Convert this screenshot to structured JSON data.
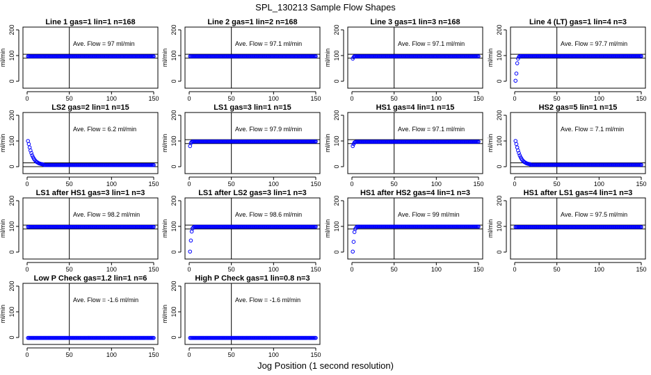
{
  "figure": {
    "title": "SPL_130213  Sample Flow Shapes",
    "xlabel": "Jog Position (1 second resolution)"
  },
  "colors": {
    "points": "#0000ff",
    "lines": "#000000",
    "background": "#ffffff"
  },
  "chart_data": [
    {
      "type": "scatter",
      "title": "Line 1 gas=1 lin=1 n=168",
      "annotation": "Ave. Flow = 97  ml/min",
      "ylabel": "ml/min",
      "xlim": [
        0,
        150
      ],
      "ylim": [
        0,
        200
      ],
      "xticks": [
        0,
        50,
        100,
        150
      ],
      "yticks": [
        0,
        100,
        200
      ],
      "ref_lines": {
        "h": [
          90,
          105
        ],
        "v": [
          50
        ]
      },
      "x_range": [
        1,
        150
      ],
      "settle": {
        "start": [],
        "value": 97
      }
    },
    {
      "type": "scatter",
      "title": "Line 2 gas=1 lin=2 n=168",
      "annotation": "Ave. Flow = 97.1  ml/min",
      "ylabel": "ml/min",
      "xlim": [
        0,
        150
      ],
      "ylim": [
        0,
        200
      ],
      "xticks": [
        0,
        50,
        100,
        150
      ],
      "yticks": [
        0,
        100,
        200
      ],
      "ref_lines": {
        "h": [
          90,
          105
        ],
        "v": [
          50
        ]
      },
      "x_range": [
        1,
        150
      ],
      "settle": {
        "start": [],
        "value": 97.1
      }
    },
    {
      "type": "scatter",
      "title": "Line 3 gas=1 lin=3 n=168",
      "annotation": "Ave. Flow = 97.1  ml/min",
      "ylabel": "ml/min",
      "xlim": [
        0,
        150
      ],
      "ylim": [
        0,
        200
      ],
      "xticks": [
        0,
        50,
        100,
        150
      ],
      "yticks": [
        0,
        100,
        200
      ],
      "ref_lines": {
        "h": [
          90,
          105
        ],
        "v": [
          50
        ]
      },
      "x_range": [
        1,
        150
      ],
      "settle": {
        "start": [
          88,
          94
        ],
        "value": 97.1
      }
    },
    {
      "type": "scatter",
      "title": "Line 4 (LT) gas=1 lin=4 n=3",
      "annotation": "Ave. Flow = 97.7  ml/min",
      "ylabel": "ml/min",
      "xlim": [
        0,
        150
      ],
      "ylim": [
        0,
        200
      ],
      "xticks": [
        0,
        50,
        100,
        150
      ],
      "yticks": [
        0,
        100,
        200
      ],
      "ref_lines": {
        "h": [
          90,
          105
        ],
        "v": [
          50
        ]
      },
      "x_range": [
        1,
        150
      ],
      "settle": {
        "start": [
          2,
          30,
          70,
          88,
          95
        ],
        "value": 97.7
      }
    },
    {
      "type": "scatter",
      "title": "LS2 gas=2 lin=1 n=15",
      "annotation": "Ave. Flow = 6.2  ml/min",
      "ylabel": "ml/min",
      "xlim": [
        0,
        150
      ],
      "ylim": [
        0,
        200
      ],
      "xticks": [
        0,
        50,
        100,
        150
      ],
      "yticks": [
        0,
        100,
        200
      ],
      "ref_lines": {
        "h": [
          0,
          15
        ],
        "v": [
          50
        ]
      },
      "x_range": [
        1,
        150
      ],
      "settle": {
        "start": [
          100,
          88,
          75,
          63,
          53,
          44,
          37,
          31,
          26,
          22,
          19,
          17,
          15,
          13,
          12,
          11,
          10,
          9.5,
          9
        ],
        "value": 6.2,
        "decay": true
      }
    },
    {
      "type": "scatter",
      "title": "LS1 gas=3 lin=1 n=15",
      "annotation": "Ave. Flow = 97.9  ml/min",
      "ylabel": "ml/min",
      "xlim": [
        0,
        150
      ],
      "ylim": [
        0,
        200
      ],
      "xticks": [
        0,
        50,
        100,
        150
      ],
      "yticks": [
        0,
        100,
        200
      ],
      "ref_lines": {
        "h": [
          90,
          105
        ],
        "v": [
          50
        ]
      },
      "x_range": [
        1,
        150
      ],
      "settle": {
        "start": [
          80,
          92,
          96
        ],
        "value": 97.9
      }
    },
    {
      "type": "scatter",
      "title": "HS1 gas=4 lin=1 n=15",
      "annotation": "Ave. Flow = 97.1  ml/min",
      "ylabel": "ml/min",
      "xlim": [
        0,
        150
      ],
      "ylim": [
        0,
        200
      ],
      "xticks": [
        0,
        50,
        100,
        150
      ],
      "yticks": [
        0,
        100,
        200
      ],
      "ref_lines": {
        "h": [
          90,
          105
        ],
        "v": [
          50
        ]
      },
      "x_range": [
        1,
        150
      ],
      "settle": {
        "start": [
          80,
          88,
          94,
          96
        ],
        "value": 97.1
      }
    },
    {
      "type": "scatter",
      "title": "HS2 gas=5 lin=1 n=15",
      "annotation": "Ave. Flow = 7.1  ml/min",
      "ylabel": "ml/min",
      "xlim": [
        0,
        150
      ],
      "ylim": [
        0,
        200
      ],
      "xticks": [
        0,
        50,
        100,
        150
      ],
      "yticks": [
        0,
        100,
        200
      ],
      "ref_lines": {
        "h": [
          0,
          15
        ],
        "v": [
          50
        ]
      },
      "x_range": [
        1,
        150
      ],
      "settle": {
        "start": [
          100,
          88,
          75,
          63,
          53,
          44,
          37,
          31,
          26,
          22,
          19,
          17,
          15,
          13,
          12,
          11,
          10.5,
          10
        ],
        "value": 7.1,
        "decay": true
      }
    },
    {
      "type": "scatter",
      "title": "LS1 after HS1 gas=3 lin=1 n=3",
      "annotation": "Ave. Flow = 98.2  ml/min",
      "ylabel": "ml/min",
      "xlim": [
        0,
        150
      ],
      "ylim": [
        0,
        200
      ],
      "xticks": [
        0,
        50,
        100,
        150
      ],
      "yticks": [
        0,
        100,
        200
      ],
      "ref_lines": {
        "h": [
          90,
          105
        ],
        "v": [
          50
        ]
      },
      "x_range": [
        1,
        150
      ],
      "settle": {
        "start": [],
        "value": 98.2
      }
    },
    {
      "type": "scatter",
      "title": "LS1 after LS2 gas=3 lin=1 n=3",
      "annotation": "Ave. Flow = 98.6  ml/min",
      "ylabel": "ml/min",
      "xlim": [
        0,
        150
      ],
      "ylim": [
        0,
        200
      ],
      "xticks": [
        0,
        50,
        100,
        150
      ],
      "yticks": [
        0,
        100,
        200
      ],
      "ref_lines": {
        "h": [
          90,
          105
        ],
        "v": [
          50
        ]
      },
      "x_range": [
        1,
        150
      ],
      "settle": {
        "start": [
          2,
          45,
          80,
          92,
          96
        ],
        "value": 98.6
      }
    },
    {
      "type": "scatter",
      "title": "HS1 after HS2 gas=4 lin=1 n=3",
      "annotation": "Ave. Flow = 99  ml/min",
      "ylabel": "ml/min",
      "xlim": [
        0,
        150
      ],
      "ylim": [
        0,
        200
      ],
      "xticks": [
        0,
        50,
        100,
        150
      ],
      "yticks": [
        0,
        100,
        200
      ],
      "ref_lines": {
        "h": [
          90,
          105
        ],
        "v": [
          50
        ]
      },
      "x_range": [
        1,
        150
      ],
      "settle": {
        "start": [
          2,
          40,
          78,
          90,
          95
        ],
        "value": 99
      }
    },
    {
      "type": "scatter",
      "title": "HS1 after LS1 gas=4 lin=1 n=3",
      "annotation": "Ave. Flow = 97.5  ml/min",
      "ylabel": "ml/min",
      "xlim": [
        0,
        150
      ],
      "ylim": [
        0,
        200
      ],
      "xticks": [
        0,
        50,
        100,
        150
      ],
      "yticks": [
        0,
        100,
        200
      ],
      "ref_lines": {
        "h": [
          90,
          105
        ],
        "v": [
          50
        ]
      },
      "x_range": [
        1,
        150
      ],
      "settle": {
        "start": [],
        "value": 97.5
      }
    },
    {
      "type": "scatter",
      "title": "Low P Check gas=1.2 lin=1 n=6",
      "annotation": "Ave. Flow = -1.6  ml/min",
      "ylabel": "ml/min",
      "xlim": [
        0,
        150
      ],
      "ylim": [
        0,
        200
      ],
      "xticks": [
        0,
        50,
        100,
        150
      ],
      "yticks": [
        0,
        100,
        200
      ],
      "ref_lines": {
        "h": [],
        "v": [
          50
        ]
      },
      "x_range": [
        1,
        150
      ],
      "settle": {
        "start": [],
        "value": -1.6
      }
    },
    {
      "type": "scatter",
      "title": "High P Check gas=1 lin=0.8 n=3",
      "annotation": "Ave. Flow = -1.6  ml/min",
      "ylabel": "ml/min",
      "xlim": [
        0,
        150
      ],
      "ylim": [
        0,
        200
      ],
      "xticks": [
        0,
        50,
        100,
        150
      ],
      "yticks": [
        0,
        100,
        200
      ],
      "ref_lines": {
        "h": [],
        "v": [
          50
        ]
      },
      "x_range": [
        1,
        150
      ],
      "settle": {
        "start": [],
        "value": -1.6
      }
    }
  ]
}
